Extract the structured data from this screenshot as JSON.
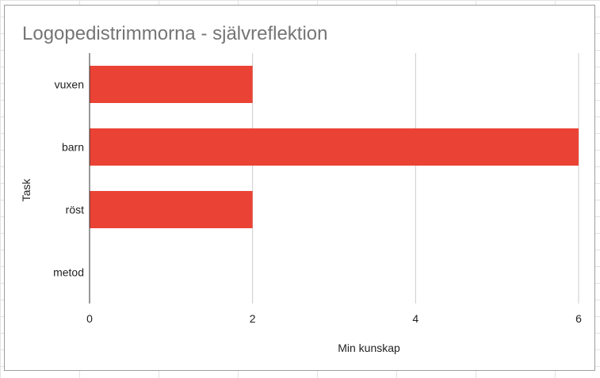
{
  "chart_data": {
    "type": "bar",
    "orientation": "horizontal",
    "title": "Logopedistrimmorna - självreflektion",
    "xlabel": "Min kunskap",
    "ylabel": "Task",
    "categories": [
      "vuxen",
      "barn",
      "röst",
      "metod"
    ],
    "values": [
      2,
      6,
      2,
      0
    ],
    "xlim": [
      0,
      6
    ],
    "xticks": [
      "0",
      "2",
      "4",
      "6"
    ],
    "bar_color": "#ea4335",
    "grid": true,
    "legend": "none"
  }
}
